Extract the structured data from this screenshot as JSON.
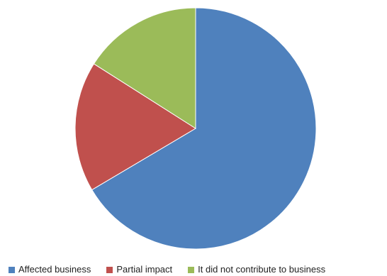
{
  "chart_data": {
    "type": "pie",
    "title": "",
    "start": "12 o'clock, clockwise",
    "legend_position": "bottom",
    "slices": [
      {
        "label": "Affected business",
        "value": 66.5,
        "color": "#4F81BD"
      },
      {
        "label": "Partial impact",
        "value": 17.5,
        "color": "#C0504D"
      },
      {
        "label": "It did not contribute to business",
        "value": 16.0,
        "color": "#9BBB59"
      }
    ]
  }
}
